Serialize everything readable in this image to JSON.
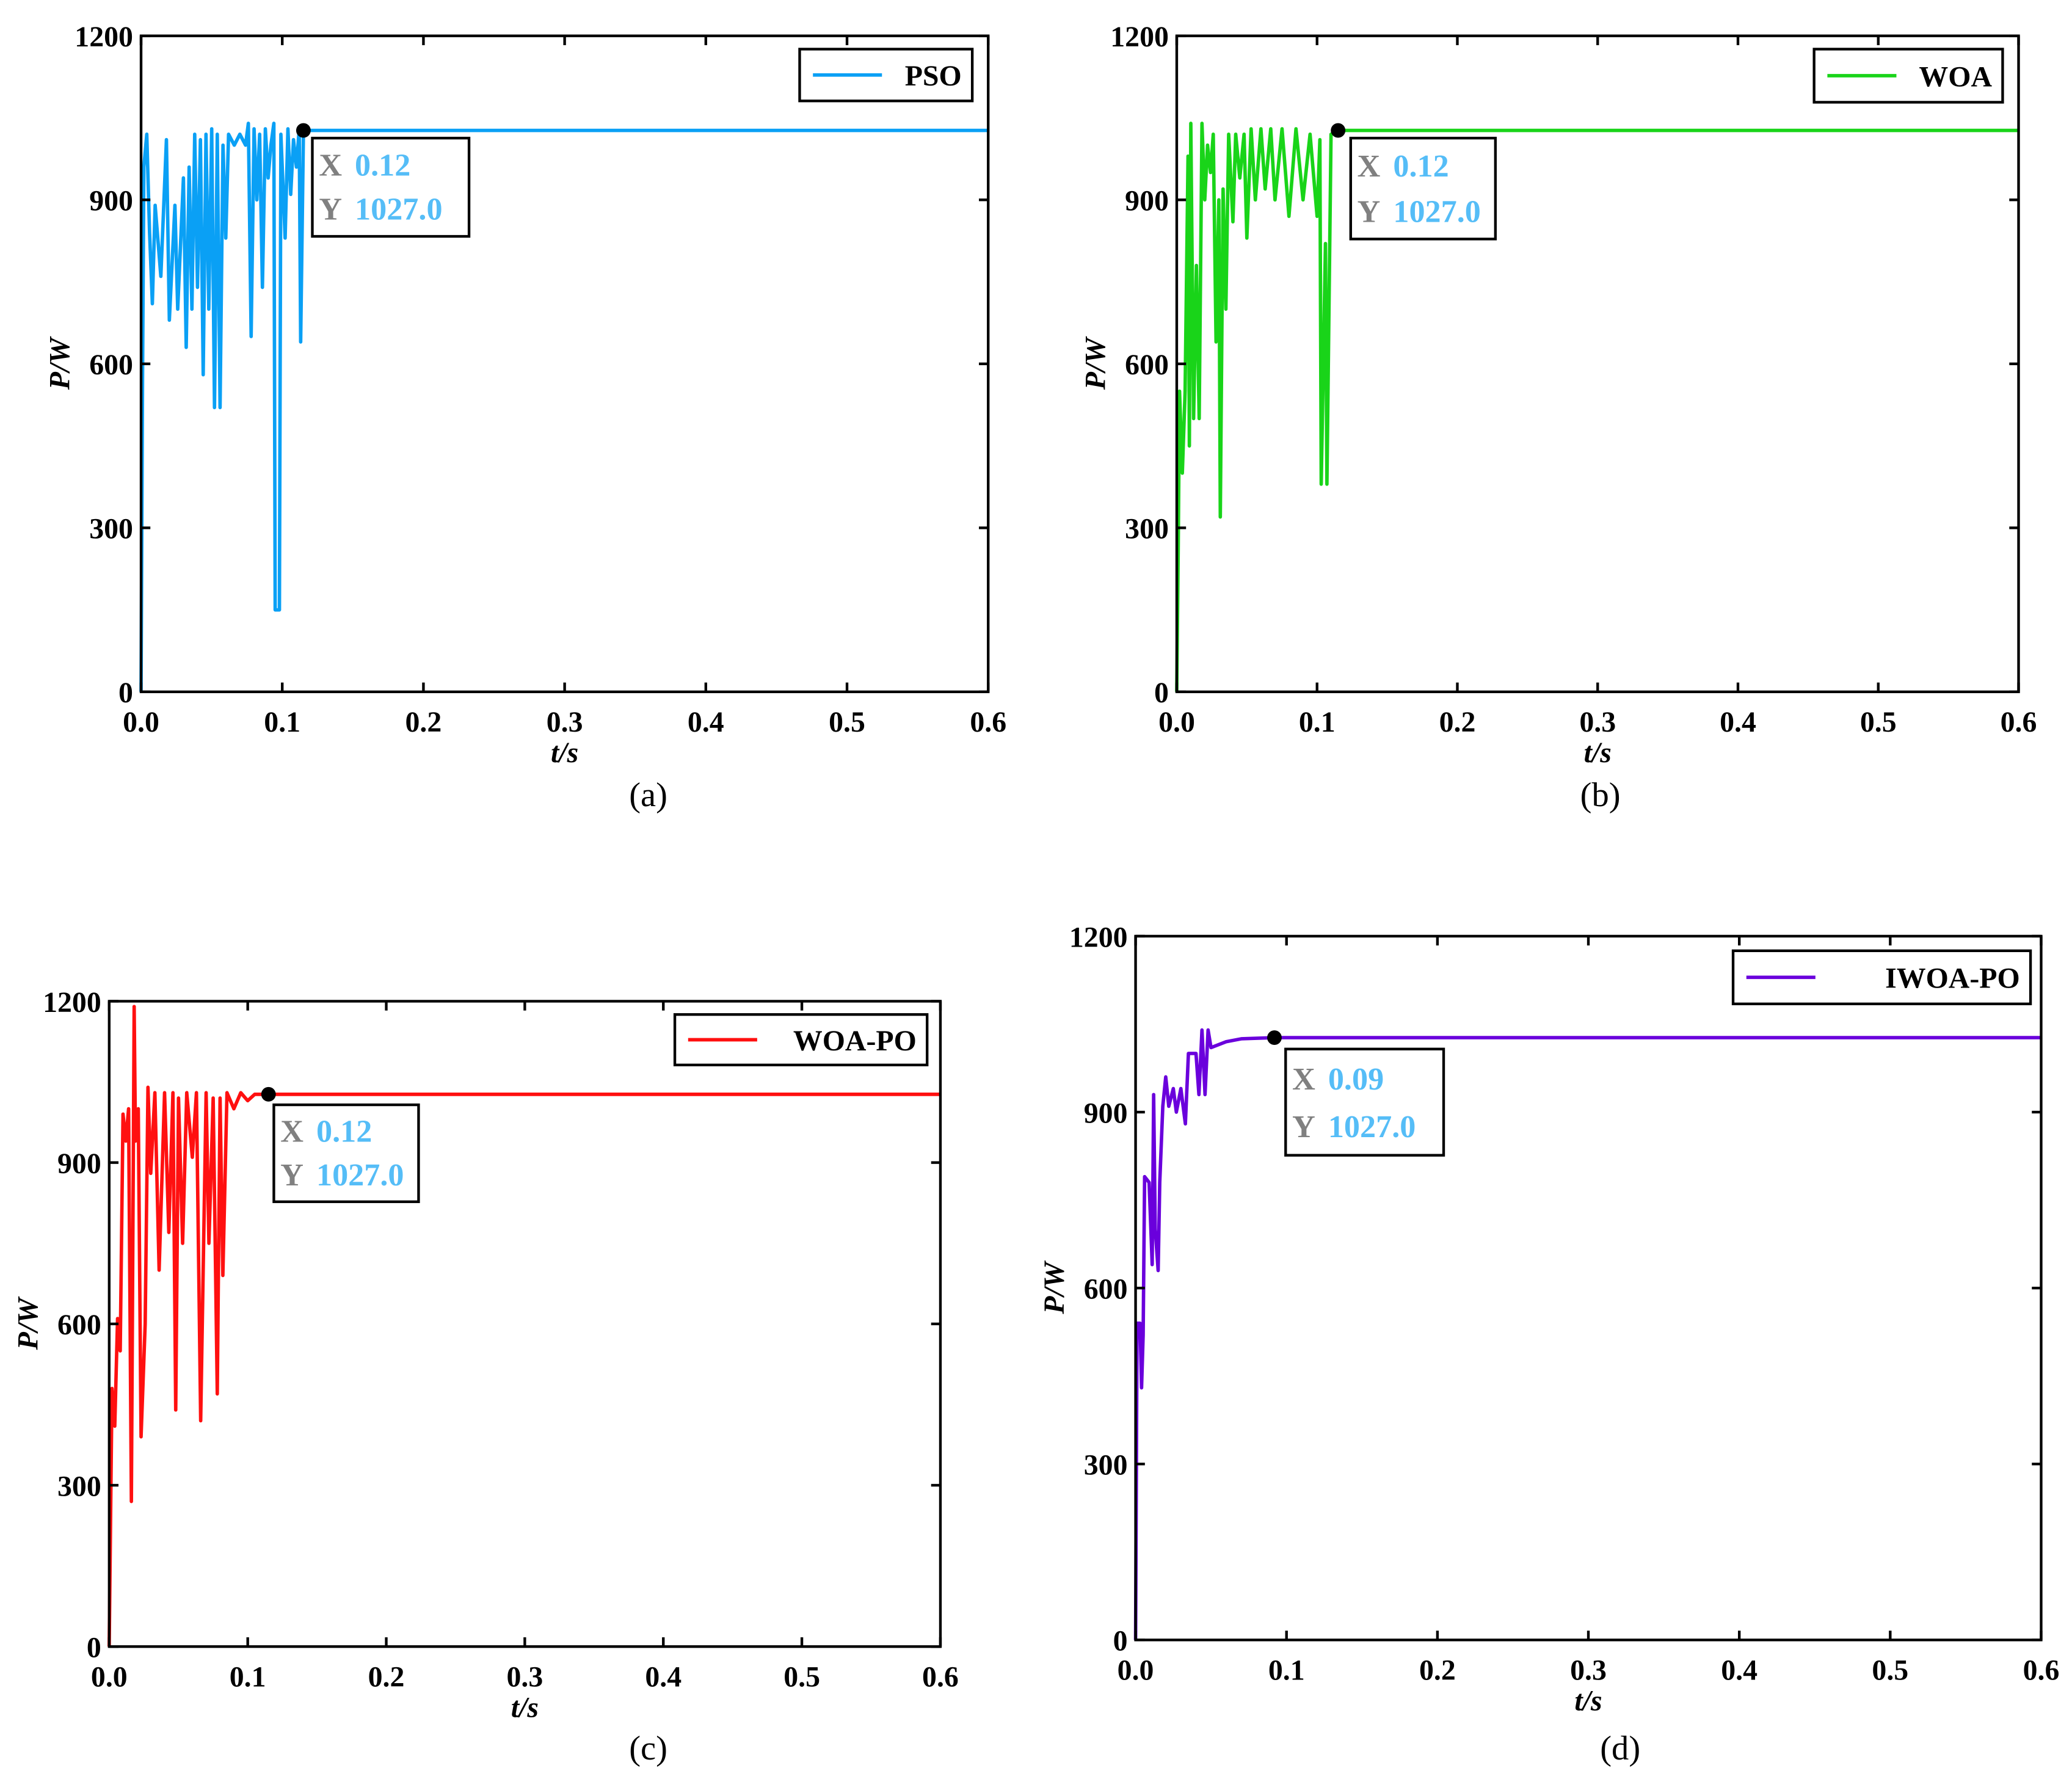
{
  "chart_data": [
    {
      "type": "line",
      "panel_label": "(a)",
      "legend": "PSO",
      "color": "#0aa0f5",
      "xlabel": "t/s",
      "ylabel": "P/W",
      "xlim": [
        0,
        0.6
      ],
      "ylim": [
        0,
        1200
      ],
      "xticks": [
        "0.0",
        "0.1",
        "0.2",
        "0.3",
        "0.4",
        "0.5",
        "0.6"
      ],
      "yticks": [
        "0",
        "300",
        "600",
        "900",
        "1200"
      ],
      "legend_position": "top-right",
      "marker": {
        "x": 0.115,
        "y": 1027,
        "x_label": "X",
        "x_value": "0.12",
        "y_label": "Y",
        "y_value": "1027.0"
      },
      "points": [
        [
          0,
          0
        ],
        [
          0.001,
          570
        ],
        [
          0.002,
          960
        ],
        [
          0.004,
          1020
        ],
        [
          0.006,
          840
        ],
        [
          0.008,
          710
        ],
        [
          0.01,
          890
        ],
        [
          0.014,
          760
        ],
        [
          0.018,
          1010
        ],
        [
          0.02,
          680
        ],
        [
          0.024,
          890
        ],
        [
          0.026,
          700
        ],
        [
          0.03,
          940
        ],
        [
          0.032,
          630
        ],
        [
          0.034,
          960
        ],
        [
          0.036,
          700
        ],
        [
          0.038,
          1020
        ],
        [
          0.04,
          740
        ],
        [
          0.042,
          1010
        ],
        [
          0.044,
          580
        ],
        [
          0.046,
          1020
        ],
        [
          0.048,
          700
        ],
        [
          0.05,
          1030
        ],
        [
          0.052,
          520
        ],
        [
          0.054,
          1020
        ],
        [
          0.056,
          520
        ],
        [
          0.058,
          1000
        ],
        [
          0.06,
          830
        ],
        [
          0.062,
          1020
        ],
        [
          0.066,
          1000
        ],
        [
          0.07,
          1020
        ],
        [
          0.074,
          1000
        ],
        [
          0.076,
          1040
        ],
        [
          0.078,
          650
        ],
        [
          0.08,
          1030
        ],
        [
          0.082,
          900
        ],
        [
          0.084,
          1020
        ],
        [
          0.086,
          740
        ],
        [
          0.088,
          1030
        ],
        [
          0.09,
          940
        ],
        [
          0.092,
          1000
        ],
        [
          0.094,
          1040
        ],
        [
          0.095,
          150
        ],
        [
          0.098,
          150
        ],
        [
          0.099,
          1020
        ],
        [
          0.102,
          830
        ],
        [
          0.104,
          1030
        ],
        [
          0.106,
          910
        ],
        [
          0.108,
          1010
        ],
        [
          0.11,
          960
        ],
        [
          0.112,
          1030
        ],
        [
          0.113,
          640
        ],
        [
          0.115,
          1027
        ],
        [
          0.6,
          1027
        ]
      ]
    },
    {
      "type": "line",
      "panel_label": "(b)",
      "legend": "WOA",
      "color": "#19d419",
      "xlabel": "t/s",
      "ylabel": "P/W",
      "xlim": [
        0,
        0.6
      ],
      "ylim": [
        0,
        1200
      ],
      "xticks": [
        "0.0",
        "0.1",
        "0.2",
        "0.3",
        "0.4",
        "0.5",
        "0.6"
      ],
      "yticks": [
        "0",
        "300",
        "600",
        "900",
        "1200"
      ],
      "legend_position": "top-right",
      "marker": {
        "x": 0.115,
        "y": 1027,
        "x_label": "X",
        "x_value": "0.12",
        "y_label": "Y",
        "y_value": "1027.0"
      },
      "points": [
        [
          0,
          0
        ],
        [
          0.001,
          260
        ],
        [
          0.002,
          550
        ],
        [
          0.004,
          400
        ],
        [
          0.006,
          550
        ],
        [
          0.008,
          980
        ],
        [
          0.009,
          450
        ],
        [
          0.01,
          1040
        ],
        [
          0.012,
          500
        ],
        [
          0.014,
          780
        ],
        [
          0.016,
          500
        ],
        [
          0.018,
          1040
        ],
        [
          0.02,
          900
        ],
        [
          0.022,
          1000
        ],
        [
          0.024,
          950
        ],
        [
          0.026,
          1020
        ],
        [
          0.028,
          640
        ],
        [
          0.03,
          900
        ],
        [
          0.031,
          320
        ],
        [
          0.033,
          920
        ],
        [
          0.035,
          700
        ],
        [
          0.037,
          1020
        ],
        [
          0.04,
          860
        ],
        [
          0.042,
          1020
        ],
        [
          0.045,
          940
        ],
        [
          0.048,
          1020
        ],
        [
          0.05,
          830
        ],
        [
          0.053,
          1030
        ],
        [
          0.056,
          900
        ],
        [
          0.06,
          1030
        ],
        [
          0.063,
          920
        ],
        [
          0.067,
          1030
        ],
        [
          0.07,
          900
        ],
        [
          0.075,
          1030
        ],
        [
          0.08,
          870
        ],
        [
          0.085,
          1030
        ],
        [
          0.09,
          900
        ],
        [
          0.095,
          1020
        ],
        [
          0.1,
          870
        ],
        [
          0.102,
          1010
        ],
        [
          0.103,
          380
        ],
        [
          0.106,
          820
        ],
        [
          0.107,
          380
        ],
        [
          0.11,
          1020
        ],
        [
          0.115,
          1027
        ],
        [
          0.6,
          1027
        ]
      ]
    },
    {
      "type": "line",
      "panel_label": "(c)",
      "legend": "WOA-PO",
      "color": "#ff1010",
      "xlabel": "t/s",
      "ylabel": "P/W",
      "xlim": [
        0,
        0.6
      ],
      "ylim": [
        0,
        1200
      ],
      "xticks": [
        "0.0",
        "0.1",
        "0.2",
        "0.3",
        "0.4",
        "0.5",
        "0.6"
      ],
      "yticks": [
        "0",
        "300",
        "600",
        "900",
        "1200"
      ],
      "legend_position": "top-right",
      "marker": {
        "x": 0.115,
        "y": 1027,
        "x_label": "X",
        "x_value": "0.12",
        "y_label": "Y",
        "y_value": "1027.0"
      },
      "points": [
        [
          0,
          0
        ],
        [
          0.002,
          480
        ],
        [
          0.004,
          410
        ],
        [
          0.006,
          610
        ],
        [
          0.008,
          550
        ],
        [
          0.01,
          990
        ],
        [
          0.012,
          940
        ],
        [
          0.014,
          1000
        ],
        [
          0.016,
          270
        ],
        [
          0.018,
          1190
        ],
        [
          0.019,
          940
        ],
        [
          0.021,
          1000
        ],
        [
          0.023,
          390
        ],
        [
          0.026,
          600
        ],
        [
          0.028,
          1040
        ],
        [
          0.03,
          880
        ],
        [
          0.033,
          1030
        ],
        [
          0.036,
          700
        ],
        [
          0.04,
          1030
        ],
        [
          0.043,
          770
        ],
        [
          0.046,
          1030
        ],
        [
          0.048,
          440
        ],
        [
          0.05,
          1020
        ],
        [
          0.053,
          750
        ],
        [
          0.056,
          1030
        ],
        [
          0.06,
          910
        ],
        [
          0.063,
          1030
        ],
        [
          0.066,
          420
        ],
        [
          0.07,
          1030
        ],
        [
          0.072,
          750
        ],
        [
          0.075,
          1020
        ],
        [
          0.078,
          470
        ],
        [
          0.08,
          1020
        ],
        [
          0.082,
          690
        ],
        [
          0.085,
          1030
        ],
        [
          0.09,
          1000
        ],
        [
          0.095,
          1030
        ],
        [
          0.1,
          1015
        ],
        [
          0.105,
          1027
        ],
        [
          0.115,
          1027
        ],
        [
          0.6,
          1027
        ]
      ]
    },
    {
      "type": "line",
      "panel_label": "(d)",
      "legend": "IWOA-PO",
      "color": "#6a00dc",
      "xlabel": "t/s",
      "ylabel": "P/W",
      "xlim": [
        0,
        0.6
      ],
      "ylim": [
        0,
        1200
      ],
      "xticks": [
        "0.0",
        "0.1",
        "0.2",
        "0.3",
        "0.4",
        "0.5",
        "0.6"
      ],
      "yticks": [
        "0",
        "300",
        "600",
        "900",
        "1200"
      ],
      "legend_position": "top-right",
      "marker": {
        "x": 0.092,
        "y": 1027,
        "x_label": "X",
        "x_value": "0.09",
        "y_label": "Y",
        "y_value": "1027.0"
      },
      "points": [
        [
          0,
          0
        ],
        [
          0.001,
          540
        ],
        [
          0.003,
          540
        ],
        [
          0.004,
          430
        ],
        [
          0.005,
          520
        ],
        [
          0.006,
          790
        ],
        [
          0.009,
          780
        ],
        [
          0.011,
          640
        ],
        [
          0.012,
          930
        ],
        [
          0.013,
          700
        ],
        [
          0.015,
          630
        ],
        [
          0.016,
          780
        ],
        [
          0.018,
          910
        ],
        [
          0.02,
          960
        ],
        [
          0.022,
          910
        ],
        [
          0.025,
          940
        ],
        [
          0.027,
          900
        ],
        [
          0.03,
          940
        ],
        [
          0.033,
          880
        ],
        [
          0.035,
          1000
        ],
        [
          0.04,
          1000
        ],
        [
          0.042,
          930
        ],
        [
          0.044,
          1040
        ],
        [
          0.046,
          930
        ],
        [
          0.048,
          1040
        ],
        [
          0.05,
          1010
        ],
        [
          0.06,
          1020
        ],
        [
          0.07,
          1025
        ],
        [
          0.092,
          1027
        ],
        [
          0.6,
          1027
        ]
      ]
    }
  ],
  "colors": {
    "tooltip_label": "#808080",
    "tooltip_value": "#55bdf7"
  }
}
